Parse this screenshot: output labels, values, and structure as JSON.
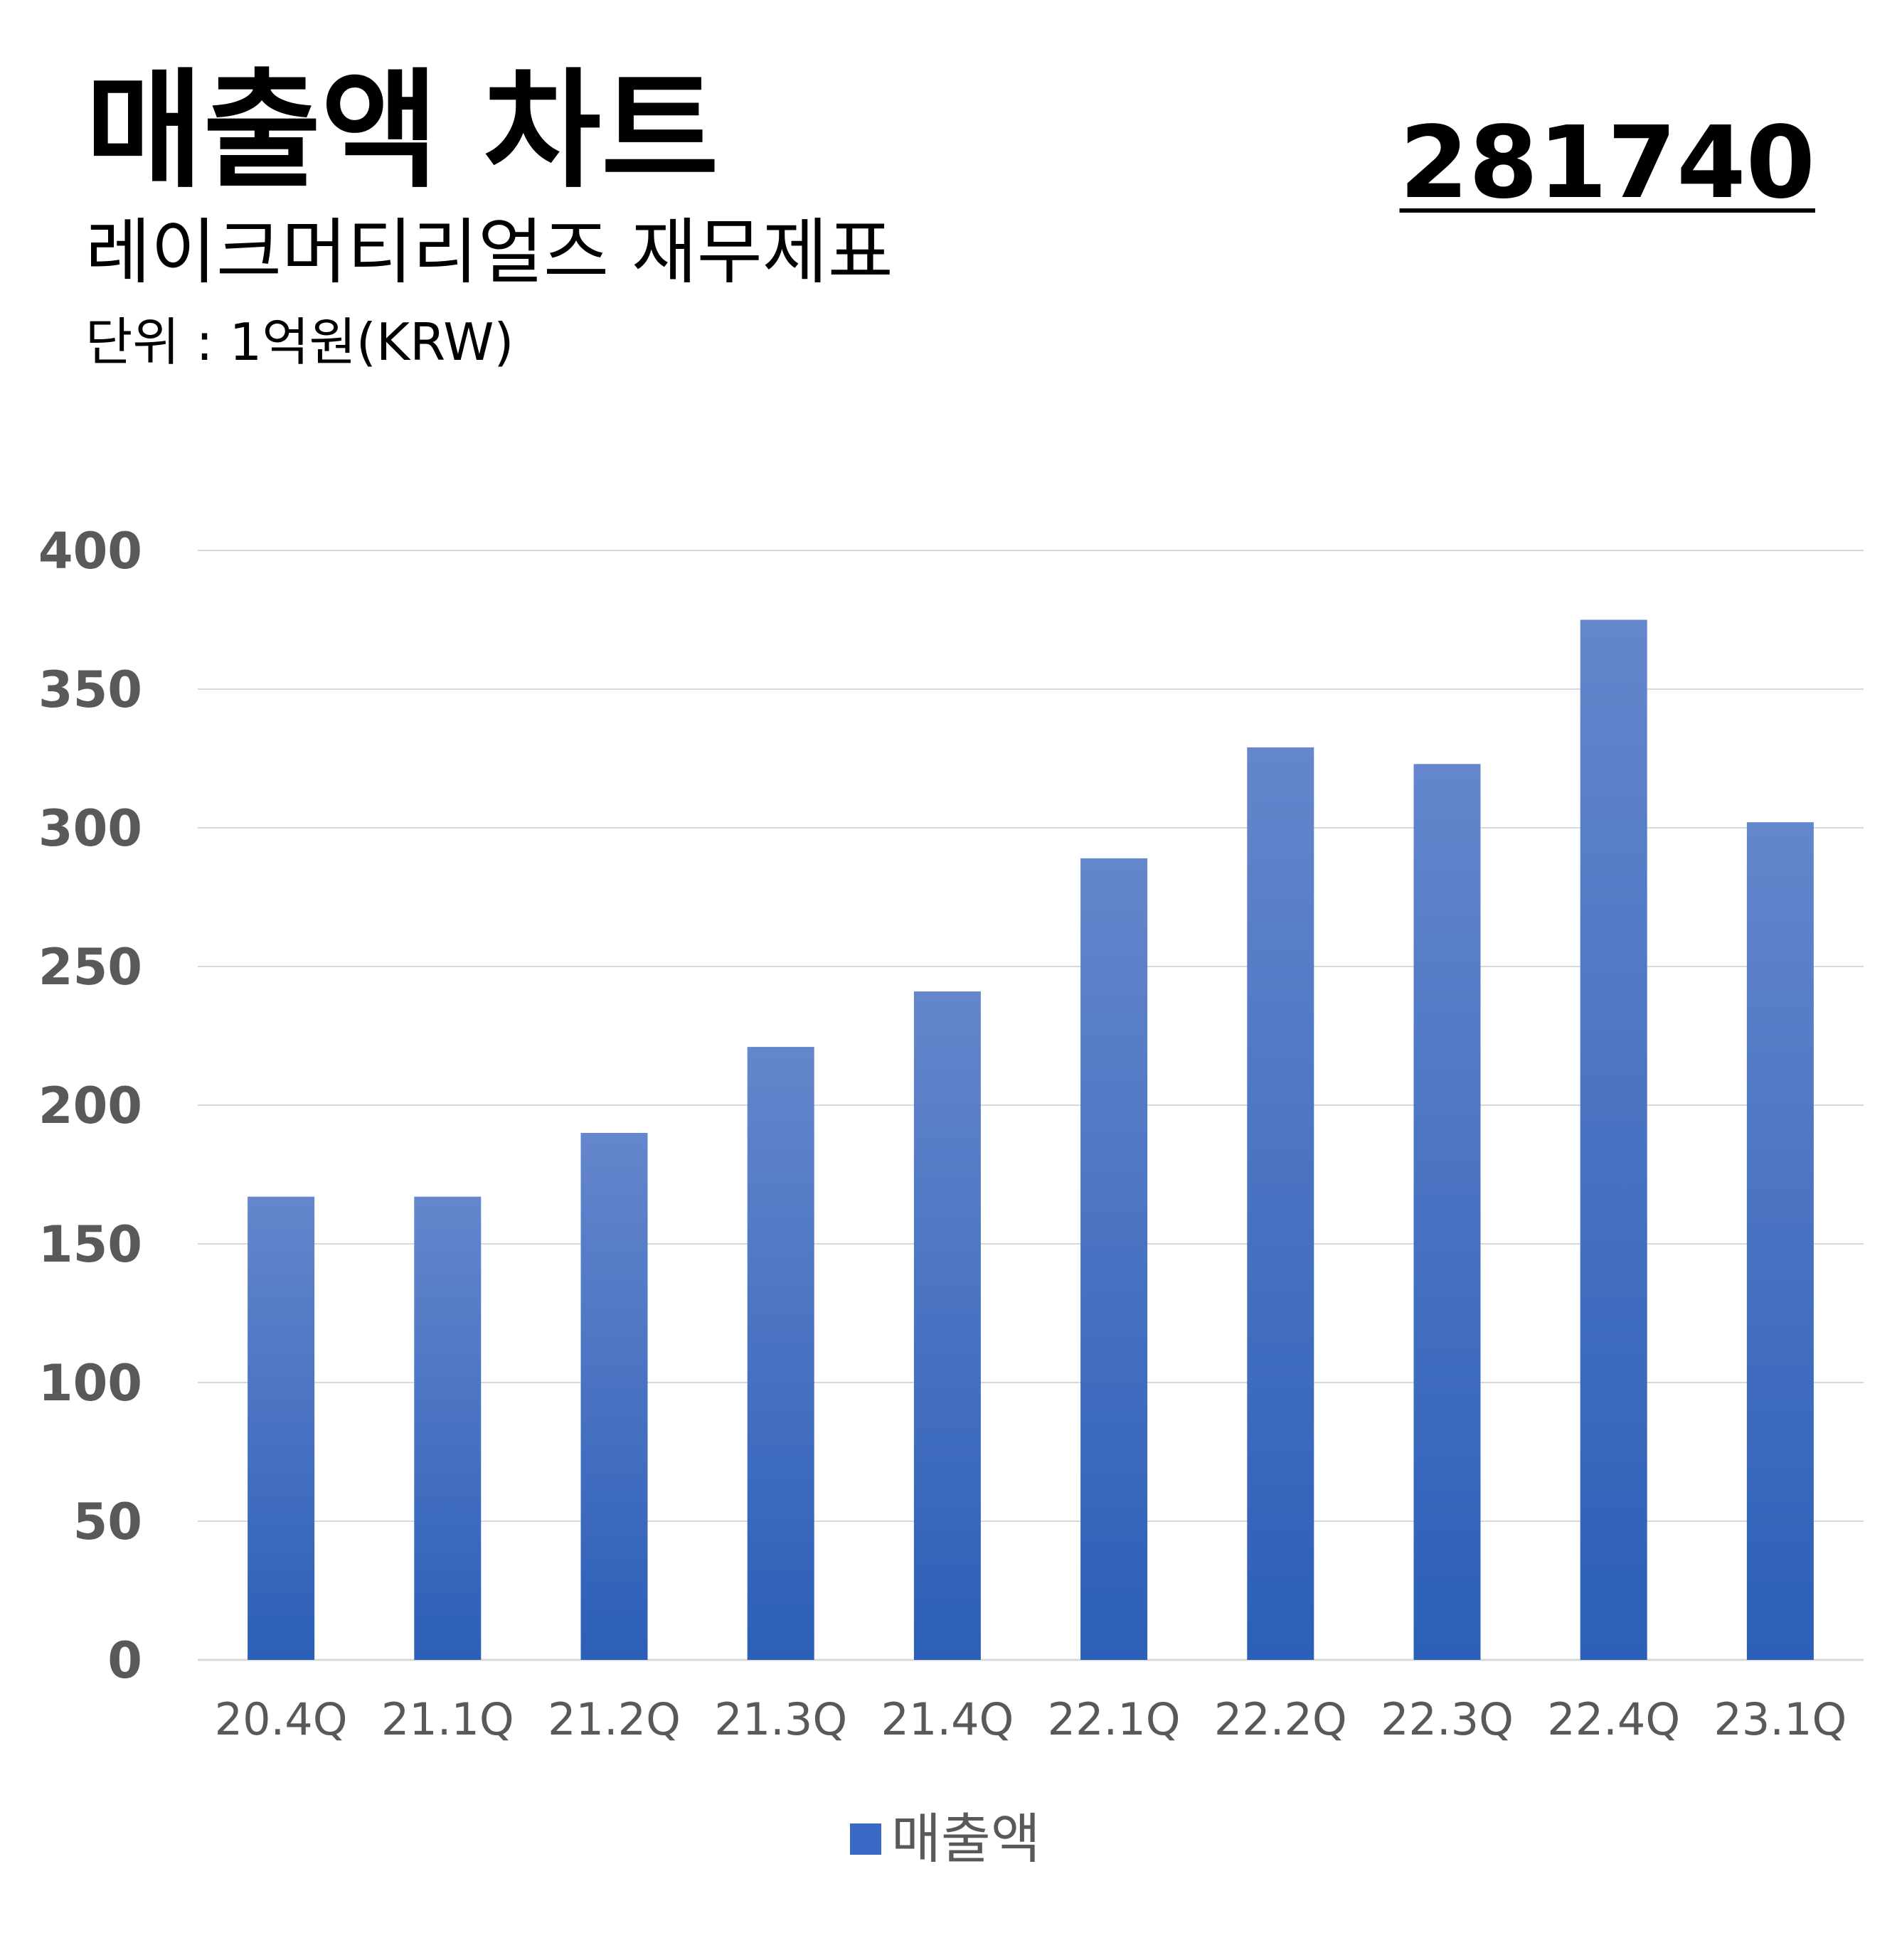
{
  "header": {
    "title": "매출액 차트",
    "subtitle": "레이크머티리얼즈 재무제표",
    "unit": "단위 : 1억원(KRW)",
    "code": "281740"
  },
  "colors": {
    "bar_top": "#6486cc",
    "bar_bottom": "#2c5fb7",
    "grid": "#d9d9d9",
    "tick_y": "#595959",
    "tick_x": "#595959"
  },
  "chart_data": {
    "type": "bar",
    "categories": [
      "20.4Q",
      "21.1Q",
      "21.2Q",
      "21.3Q",
      "21.4Q",
      "22.1Q",
      "22.2Q",
      "22.3Q",
      "22.4Q",
      "23.1Q"
    ],
    "series": [
      {
        "name": "매출액",
        "values": [
          167,
          167,
          190,
          221,
          241,
          289,
          329,
          323,
          375,
          302
        ]
      }
    ],
    "ylim": [
      0,
      400
    ],
    "yticks": [
      0,
      50,
      100,
      150,
      200,
      250,
      300,
      350,
      400
    ],
    "grid": true,
    "legend": "bottom"
  }
}
